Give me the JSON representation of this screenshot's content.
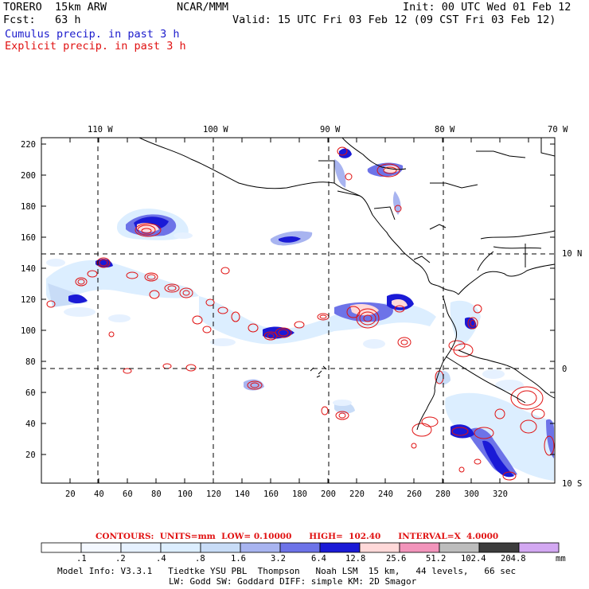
{
  "header": {
    "model": "TORERO  15km ARW",
    "center": "NCAR/MMM",
    "init": "Init: 00 UTC Wed 01 Feb 12",
    "fcst": "Fcst:   63 h",
    "valid": "Valid: 15 UTC Fri 03 Feb 12 (09 CST Fri 03 Feb 12)",
    "line1": "Cumulus precip. in past 3 h",
    "line2": "Explicit precip. in past 3 h",
    "line1_color": "#1a1acc",
    "line2_color": "#e01010"
  },
  "map": {
    "top_lon_labels": [
      "110 W",
      "100 W",
      "90 W",
      "80 W",
      "70 W"
    ],
    "right_lat_labels": [
      "10 N",
      "0",
      "10 S"
    ],
    "y_ticks": [
      "220",
      "200",
      "180",
      "160",
      "140",
      "120",
      "100",
      "80",
      "60",
      "40",
      "20"
    ],
    "x_ticks": [
      "20",
      "40",
      "60",
      "80",
      "100",
      "120",
      "140",
      "160",
      "180",
      "200",
      "220",
      "240",
      "260",
      "280",
      "300",
      "320"
    ]
  },
  "contour_info": {
    "label": "CONTOURS:  UNITS=mm  LOW= 0.10000      HIGH=  102.40      INTERVAL=X  4.0000",
    "color": "#e01010"
  },
  "colorbar": {
    "labels": [
      ".1",
      ".2",
      ".4",
      ".8",
      "1.6",
      "3.2",
      "6.4",
      "12.8",
      "25.6",
      "51.2",
      "102.4",
      "204.8"
    ],
    "units": "mm",
    "colors": [
      "#ffffff",
      "#f4f8ff",
      "#e6f1ff",
      "#dceeff",
      "#c8dcf7",
      "#a8b4f0",
      "#6d73e8",
      "#1a1ad6",
      "#ffd9d9",
      "#f294bb",
      "#bdbdbd",
      "#3d3d3d",
      "#d3a8f2"
    ]
  },
  "footer": {
    "line1": "Model Info: V3.3.1   Tiedtke YSU PBL  Thompson   Noah LSM  15 km,   44 levels,   66 sec",
    "line2": "LW: Godd SW: Goddard DIFF: simple KM: 2D Smagor"
  }
}
